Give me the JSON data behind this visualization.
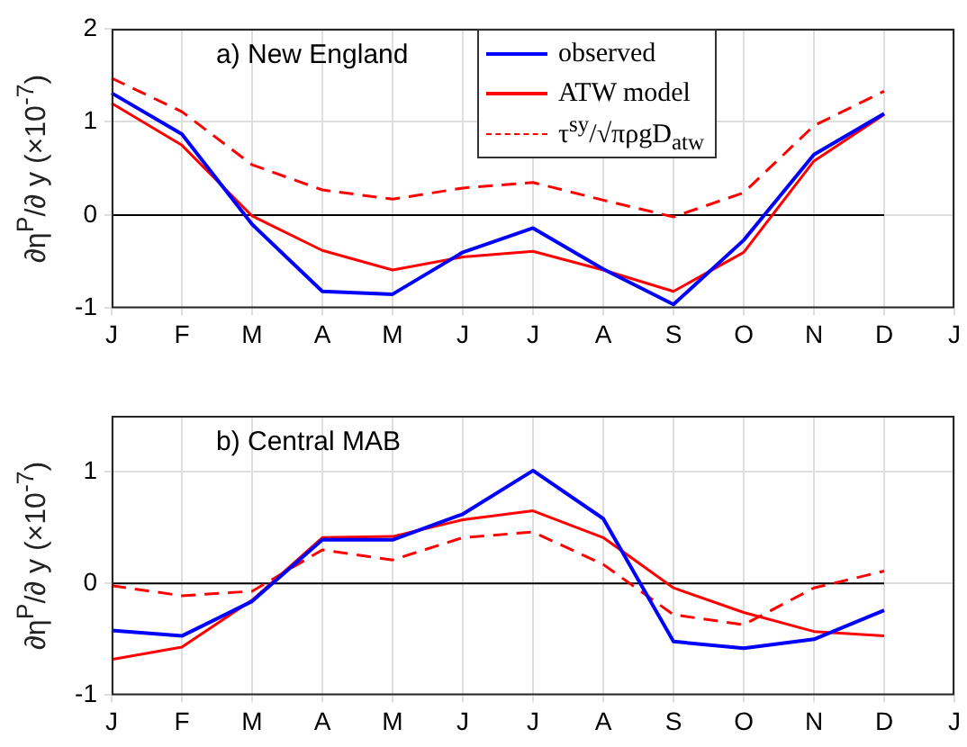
{
  "chart_data": [
    {
      "type": "line",
      "title": "a) New England",
      "ylabel": "∂η$^{P}$/∂ y (×10$^{-7}$)",
      "categories": [
        "J",
        "F",
        "M",
        "A",
        "M",
        "J",
        "J",
        "A",
        "S",
        "O",
        "N",
        "D",
        "J"
      ],
      "ylim": [
        -1,
        2
      ],
      "yticks": [
        -1,
        0,
        1,
        2
      ],
      "grid": true,
      "legend": "top",
      "ref_lines": [
        {
          "axis": "y",
          "value": 0,
          "color": "#000000"
        }
      ],
      "series": [
        {
          "name": "observed",
          "color": "#0000ff",
          "values": [
            1.31,
            0.87,
            -0.1,
            -0.82,
            -0.85,
            -0.4,
            -0.14,
            -0.58,
            -0.96,
            -0.27,
            0.65,
            1.09,
            null
          ]
        },
        {
          "name": "ATW model",
          "color": "#ff0000",
          "values": [
            1.2,
            0.75,
            -0.01,
            -0.38,
            -0.59,
            -0.45,
            -0.39,
            -0.59,
            -0.82,
            -0.4,
            0.58,
            1.08,
            null
          ]
        },
        {
          "name": "τ$^{sy}$/√πρgD$_{atw}$",
          "color": "#ff0000",
          "line_style": "dashed",
          "values": [
            1.47,
            1.11,
            0.54,
            0.27,
            0.17,
            0.29,
            0.35,
            0.16,
            -0.02,
            0.24,
            0.96,
            1.33,
            null
          ]
        }
      ]
    },
    {
      "type": "line",
      "title": "b) Central MAB",
      "ylabel": "∂η$^{P}$/∂ y (×10$^{-7}$)",
      "categories": [
        "J",
        "F",
        "M",
        "A",
        "M",
        "J",
        "J",
        "A",
        "S",
        "O",
        "N",
        "D",
        "J"
      ],
      "ylim": [
        -1,
        1.5
      ],
      "yticks": [
        -1,
        0,
        1
      ],
      "grid": true,
      "ref_lines": [
        {
          "axis": "y",
          "value": 0,
          "color": "#000000"
        }
      ],
      "series": [
        {
          "color": "#0000ff",
          "values": [
            -0.42,
            -0.47,
            -0.16,
            0.39,
            0.39,
            0.62,
            1.01,
            0.58,
            -0.52,
            -0.58,
            -0.5,
            -0.24,
            null
          ]
        },
        {
          "color": "#ff0000",
          "values": [
            -0.68,
            -0.57,
            -0.15,
            0.41,
            0.42,
            0.57,
            0.65,
            0.41,
            -0.04,
            -0.26,
            -0.43,
            -0.47,
            null
          ]
        },
        {
          "color": "#ff0000",
          "line_style": "dashed",
          "values": [
            -0.02,
            -0.11,
            -0.07,
            0.3,
            0.21,
            0.41,
            0.46,
            0.17,
            -0.28,
            -0.37,
            -0.04,
            0.11,
            null
          ]
        }
      ]
    }
  ]
}
